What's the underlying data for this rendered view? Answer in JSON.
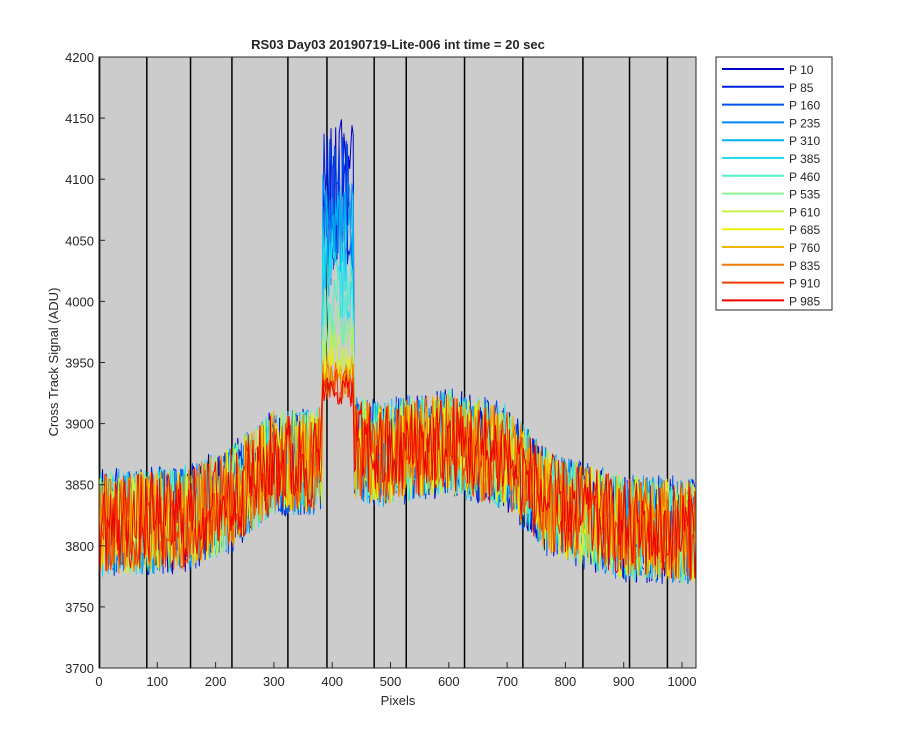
{
  "chart_data": {
    "type": "line",
    "title": "RS03 Day03 20190719-Lite-006 int time = 20 sec",
    "xlabel": "Pixels",
    "ylabel": "Cross Track Signal (ADU)",
    "xlim": [
      0,
      1024
    ],
    "ylim": [
      3700,
      4200
    ],
    "xticks": [
      "0",
      "100",
      "200",
      "300",
      "400",
      "500",
      "600",
      "700",
      "800",
      "900",
      "1000"
    ],
    "yticks": [
      "3700",
      "3750",
      "3800",
      "3850",
      "3900",
      "3950",
      "4000",
      "4050",
      "4100",
      "4150",
      "4200"
    ],
    "grid": false,
    "legend_position": "outside-right-top",
    "background_color": "#cccccc",
    "vertical_lines": [
      1,
      82,
      157,
      228,
      324,
      391,
      472,
      527,
      627,
      727,
      830,
      910,
      975
    ],
    "series": [
      {
        "name": "P 10",
        "color": "#0000c8",
        "center": [
          [
            0,
            3818
          ],
          [
            150,
            3822
          ],
          [
            230,
            3840
          ],
          [
            300,
            3870
          ],
          [
            370,
            3868
          ],
          [
            400,
            3885
          ],
          [
            480,
            3875
          ],
          [
            600,
            3885
          ],
          [
            700,
            3872
          ],
          [
            770,
            3835
          ],
          [
            900,
            3815
          ],
          [
            1024,
            3812
          ]
        ],
        "noise": 45,
        "peak": 4150
      },
      {
        "name": "P 85",
        "color": "#0020e0",
        "center": [
          [
            0,
            3818
          ],
          [
            150,
            3822
          ],
          [
            230,
            3840
          ],
          [
            300,
            3870
          ],
          [
            370,
            3868
          ],
          [
            400,
            3885
          ],
          [
            480,
            3875
          ],
          [
            600,
            3885
          ],
          [
            700,
            3872
          ],
          [
            770,
            3835
          ],
          [
            900,
            3815
          ],
          [
            1024,
            3812
          ]
        ],
        "noise": 45,
        "peak": 4145
      },
      {
        "name": "P 160",
        "color": "#0050f0",
        "center": [
          [
            0,
            3818
          ],
          [
            150,
            3822
          ],
          [
            230,
            3840
          ],
          [
            300,
            3870
          ],
          [
            370,
            3868
          ],
          [
            400,
            3885
          ],
          [
            480,
            3875
          ],
          [
            600,
            3885
          ],
          [
            700,
            3872
          ],
          [
            770,
            3835
          ],
          [
            900,
            3815
          ],
          [
            1024,
            3812
          ]
        ],
        "noise": 45,
        "peak": 4135
      },
      {
        "name": "P 235",
        "color": "#0088f0",
        "center": [
          [
            0,
            3818
          ],
          [
            150,
            3822
          ],
          [
            230,
            3840
          ],
          [
            300,
            3870
          ],
          [
            370,
            3868
          ],
          [
            400,
            3885
          ],
          [
            480,
            3875
          ],
          [
            600,
            3885
          ],
          [
            700,
            3872
          ],
          [
            770,
            3835
          ],
          [
            900,
            3815
          ],
          [
            1024,
            3812
          ]
        ],
        "noise": 44,
        "peak": 4110
      },
      {
        "name": "P 310",
        "color": "#00b4f0",
        "center": [
          [
            0,
            3818
          ],
          [
            150,
            3822
          ],
          [
            230,
            3840
          ],
          [
            300,
            3870
          ],
          [
            370,
            3868
          ],
          [
            400,
            3885
          ],
          [
            480,
            3875
          ],
          [
            600,
            3885
          ],
          [
            700,
            3872
          ],
          [
            770,
            3835
          ],
          [
            900,
            3815
          ],
          [
            1024,
            3812
          ]
        ],
        "noise": 44,
        "peak": 4090
      },
      {
        "name": "P 385",
        "color": "#20e0f0",
        "center": [
          [
            0,
            3818
          ],
          [
            150,
            3822
          ],
          [
            230,
            3840
          ],
          [
            300,
            3870
          ],
          [
            370,
            3868
          ],
          [
            400,
            3885
          ],
          [
            480,
            3875
          ],
          [
            600,
            3885
          ],
          [
            700,
            3872
          ],
          [
            770,
            3835
          ],
          [
            900,
            3815
          ],
          [
            1024,
            3812
          ]
        ],
        "noise": 44,
        "peak": 4060
      },
      {
        "name": "P 460",
        "color": "#50f0c8",
        "center": [
          [
            0,
            3818
          ],
          [
            150,
            3822
          ],
          [
            230,
            3840
          ],
          [
            300,
            3870
          ],
          [
            370,
            3868
          ],
          [
            400,
            3885
          ],
          [
            480,
            3875
          ],
          [
            600,
            3885
          ],
          [
            700,
            3872
          ],
          [
            770,
            3835
          ],
          [
            900,
            3815
          ],
          [
            1024,
            3812
          ]
        ],
        "noise": 43,
        "peak": 4030
      },
      {
        "name": "P 535",
        "color": "#8cf090",
        "center": [
          [
            0,
            3818
          ],
          [
            150,
            3822
          ],
          [
            230,
            3840
          ],
          [
            300,
            3870
          ],
          [
            370,
            3868
          ],
          [
            400,
            3885
          ],
          [
            480,
            3875
          ],
          [
            600,
            3885
          ],
          [
            700,
            3872
          ],
          [
            770,
            3835
          ],
          [
            900,
            3815
          ],
          [
            1024,
            3812
          ]
        ],
        "noise": 43,
        "peak": 4000
      },
      {
        "name": "P 610",
        "color": "#c8f050",
        "center": [
          [
            0,
            3818
          ],
          [
            150,
            3822
          ],
          [
            230,
            3840
          ],
          [
            300,
            3870
          ],
          [
            370,
            3868
          ],
          [
            400,
            3885
          ],
          [
            480,
            3875
          ],
          [
            600,
            3885
          ],
          [
            700,
            3872
          ],
          [
            770,
            3835
          ],
          [
            900,
            3815
          ],
          [
            1024,
            3812
          ]
        ],
        "noise": 43,
        "peak": 3980
      },
      {
        "name": "P 685",
        "color": "#f0f000",
        "center": [
          [
            0,
            3818
          ],
          [
            150,
            3822
          ],
          [
            230,
            3840
          ],
          [
            300,
            3870
          ],
          [
            370,
            3868
          ],
          [
            400,
            3885
          ],
          [
            480,
            3875
          ],
          [
            600,
            3885
          ],
          [
            700,
            3872
          ],
          [
            770,
            3835
          ],
          [
            900,
            3815
          ],
          [
            1024,
            3812
          ]
        ],
        "noise": 42,
        "peak": 3965
      },
      {
        "name": "P 760",
        "color": "#f0b400",
        "center": [
          [
            0,
            3818
          ],
          [
            150,
            3822
          ],
          [
            230,
            3840
          ],
          [
            300,
            3870
          ],
          [
            370,
            3868
          ],
          [
            400,
            3885
          ],
          [
            480,
            3875
          ],
          [
            600,
            3885
          ],
          [
            700,
            3872
          ],
          [
            770,
            3835
          ],
          [
            900,
            3815
          ],
          [
            1024,
            3812
          ]
        ],
        "noise": 42,
        "peak": 3955
      },
      {
        "name": "P 835",
        "color": "#f07800",
        "center": [
          [
            0,
            3818
          ],
          [
            150,
            3822
          ],
          [
            230,
            3840
          ],
          [
            300,
            3870
          ],
          [
            370,
            3868
          ],
          [
            400,
            3885
          ],
          [
            480,
            3875
          ],
          [
            600,
            3885
          ],
          [
            700,
            3872
          ],
          [
            770,
            3835
          ],
          [
            900,
            3815
          ],
          [
            1024,
            3812
          ]
        ],
        "noise": 42,
        "peak": 3950
      },
      {
        "name": "P 910",
        "color": "#f03c00",
        "center": [
          [
            0,
            3818
          ],
          [
            150,
            3822
          ],
          [
            230,
            3840
          ],
          [
            300,
            3870
          ],
          [
            370,
            3868
          ],
          [
            400,
            3885
          ],
          [
            480,
            3875
          ],
          [
            600,
            3885
          ],
          [
            700,
            3872
          ],
          [
            770,
            3835
          ],
          [
            900,
            3815
          ],
          [
            1024,
            3812
          ]
        ],
        "noise": 41,
        "peak": 3945
      },
      {
        "name": "P 985",
        "color": "#f00000",
        "center": [
          [
            0,
            3818
          ],
          [
            150,
            3822
          ],
          [
            230,
            3840
          ],
          [
            300,
            3870
          ],
          [
            370,
            3868
          ],
          [
            400,
            3885
          ],
          [
            480,
            3875
          ],
          [
            600,
            3885
          ],
          [
            700,
            3872
          ],
          [
            770,
            3835
          ],
          [
            900,
            3815
          ],
          [
            1024,
            3812
          ]
        ],
        "noise": 41,
        "peak": 3940
      }
    ]
  }
}
